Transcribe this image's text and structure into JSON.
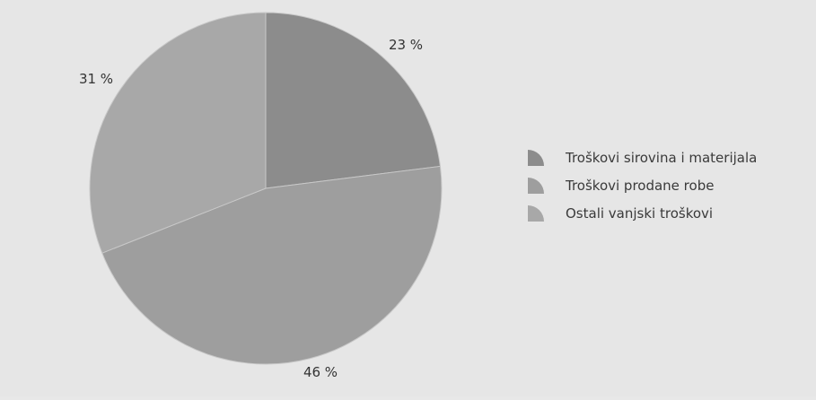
{
  "chart_data": {
    "type": "pie",
    "categories": [
      "Troškovi sirovina i materijala",
      "Troškovi prodane robe",
      "Ostali vanjski troškovi"
    ],
    "values": [
      23,
      46,
      31
    ],
    "value_labels": [
      "23 %",
      "46 %",
      "31 %"
    ],
    "legend_placement": "right",
    "colors": [
      "#8c8c8c",
      "#9e9e9e",
      "#a8a8a8"
    ]
  }
}
